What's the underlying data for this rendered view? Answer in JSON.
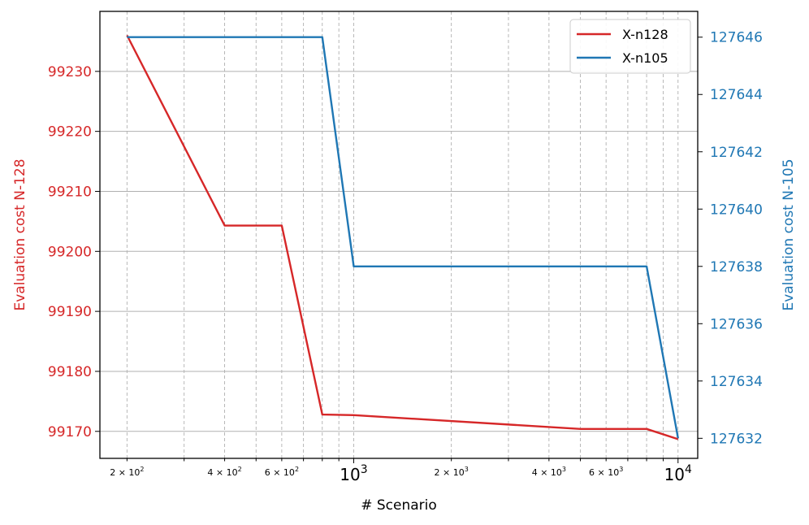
{
  "chart_data": {
    "type": "line",
    "title": "",
    "xlabel": "# Scenario",
    "ylabel_left": "Evaluation cost N-128",
    "ylabel_right": "Evaluation cost N-105",
    "x_scale": "log",
    "xlim": [
      165,
      11500
    ],
    "ylim_left": [
      99165.5,
      99240
    ],
    "ylim_right": [
      127631.3,
      127646.9
    ],
    "grid": true,
    "legend_position": "top-right",
    "colors": {
      "left": "#d62728",
      "right": "#1f77b4"
    },
    "x_ticks": [
      {
        "value": 200,
        "base": "2 × 10",
        "exp": "2",
        "major": false
      },
      {
        "value": 400,
        "base": "4 × 10",
        "exp": "2",
        "major": false
      },
      {
        "value": 600,
        "base": "6 × 10",
        "exp": "2",
        "major": false
      },
      {
        "value": 1000,
        "base": "10",
        "exp": "3",
        "major": true
      },
      {
        "value": 2000,
        "base": "2 × 10",
        "exp": "3",
        "major": false
      },
      {
        "value": 4000,
        "base": "4 × 10",
        "exp": "3",
        "major": false
      },
      {
        "value": 6000,
        "base": "6 × 10",
        "exp": "3",
        "major": false
      },
      {
        "value": 10000,
        "base": "10",
        "exp": "4",
        "major": true
      }
    ],
    "x_minor_gridlines": [
      300,
      500,
      700,
      800,
      900,
      3000,
      5000,
      7000,
      8000,
      9000
    ],
    "y_ticks_left": [
      99170,
      99180,
      99190,
      99200,
      99210,
      99220,
      99230
    ],
    "y_ticks_right": [
      127632,
      127634,
      127636,
      127638,
      127640,
      127642,
      127644,
      127646
    ],
    "series": [
      {
        "name": "X-n128",
        "axis": "left",
        "x": [
          200,
          400,
          600,
          800,
          1000,
          5000,
          8000,
          10000
        ],
        "values": [
          99236,
          99204.3,
          99204.3,
          99172.8,
          99172.7,
          99170.4,
          99170.4,
          99168.7
        ]
      },
      {
        "name": "X-n105",
        "axis": "right",
        "x": [
          200,
          800,
          1000,
          8000,
          10000
        ],
        "values": [
          127646,
          127646,
          127638,
          127638,
          127632
        ]
      }
    ]
  }
}
